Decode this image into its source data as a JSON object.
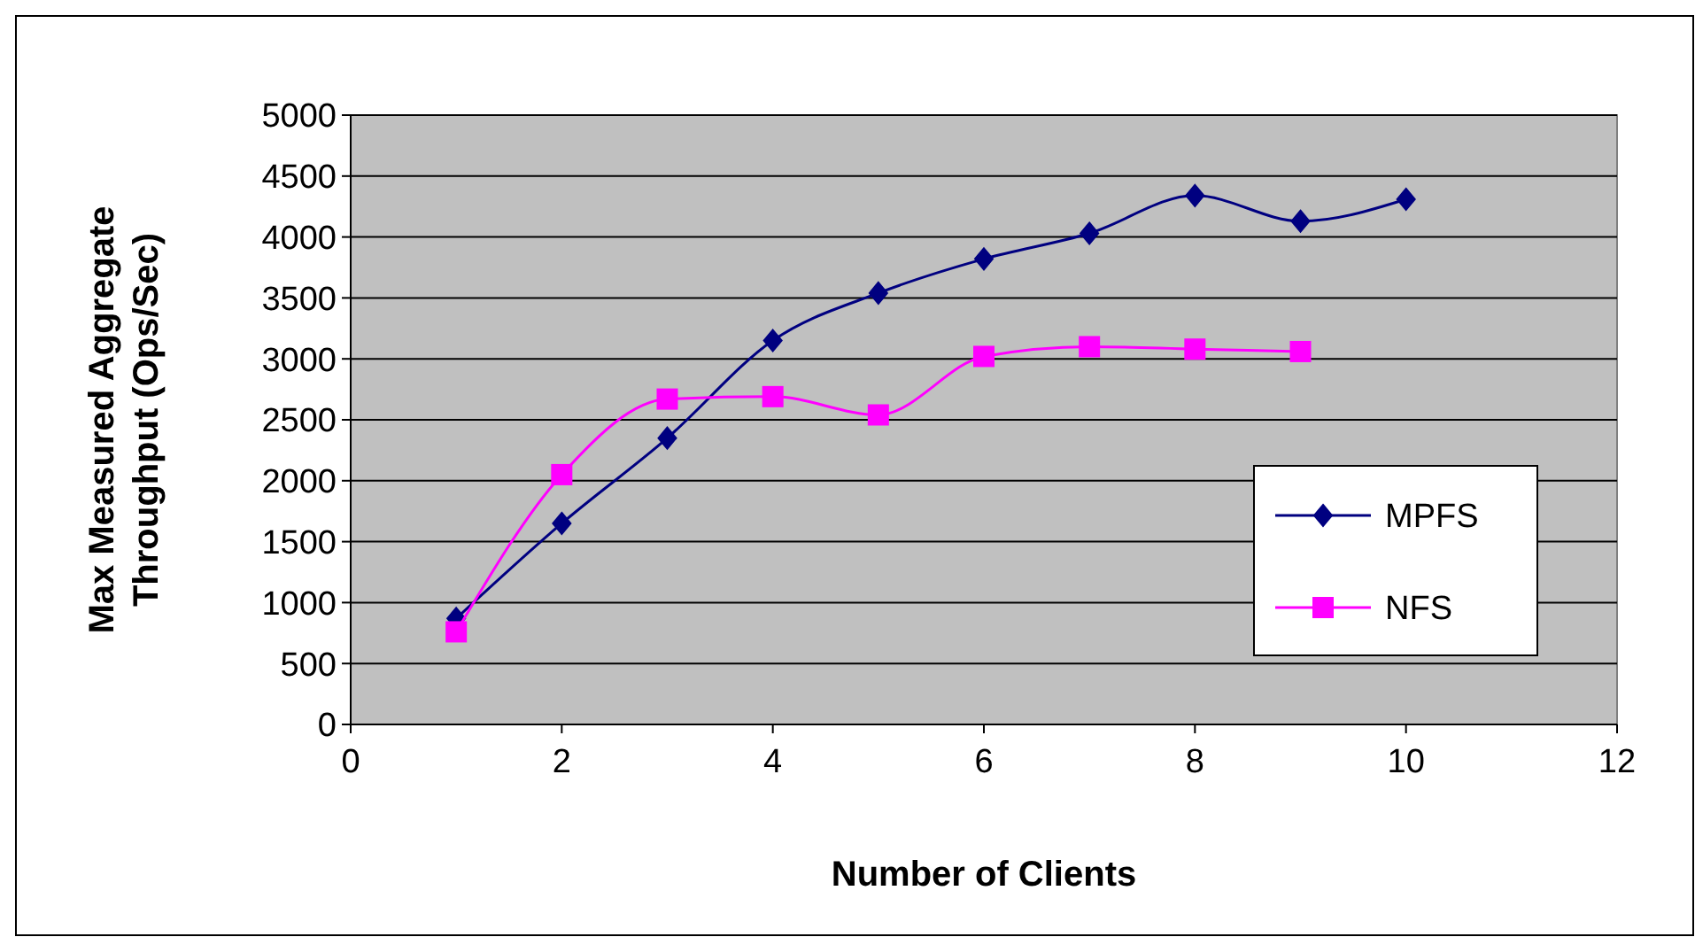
{
  "chart_data": {
    "type": "line",
    "xlabel": "Number of Clients",
    "ylabel": "Max Measured Aggregate Throughput (Ops/Sec)",
    "xlim": [
      0,
      12
    ],
    "xticks": [
      0,
      2,
      4,
      6,
      8,
      10,
      12
    ],
    "ylim": [
      0,
      5000
    ],
    "yticks": [
      0,
      500,
      1000,
      1500,
      2000,
      2500,
      3000,
      3500,
      4000,
      4500,
      5000
    ],
    "grid": "y",
    "legend": "right",
    "series": [
      {
        "name": "MPFS",
        "color": "#000080",
        "marker": "diamond",
        "x": [
          1,
          2,
          3,
          4,
          5,
          6,
          7,
          8,
          9,
          10
        ],
        "values": [
          870,
          1650,
          2350,
          3150,
          3540,
          3820,
          4030,
          4340,
          4130,
          4310
        ]
      },
      {
        "name": "NFS",
        "color": "#ff00ff",
        "marker": "square",
        "x": [
          1,
          2,
          3,
          4,
          5,
          6,
          7,
          8,
          9
        ],
        "values": [
          760,
          2050,
          2670,
          2690,
          2540,
          3020,
          3100,
          3080,
          3060
        ]
      }
    ]
  }
}
